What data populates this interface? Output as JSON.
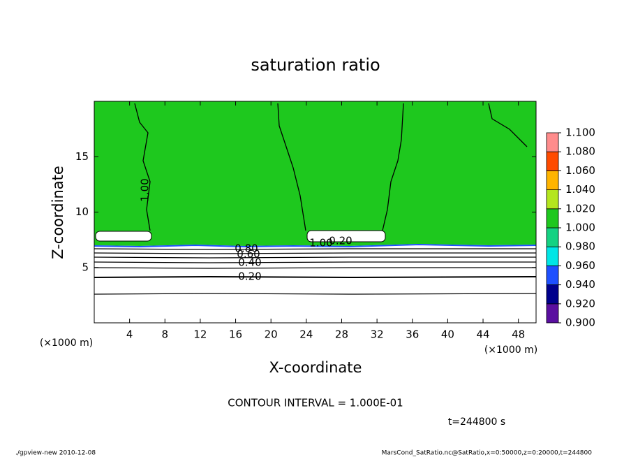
{
  "chart_data": {
    "type": "contour",
    "title": "saturation ratio",
    "x_label": "X-coordinate",
    "y_label": "Z-coordinate",
    "x_unit_labels": [
      "(×1000 m)",
      "(×1000 m)"
    ],
    "xlim": [
      0,
      50
    ],
    "xticks": [
      4,
      8,
      12,
      16,
      20,
      24,
      28,
      32,
      36,
      40,
      44,
      48
    ],
    "ylim": [
      0,
      20
    ],
    "yticks": [
      5,
      10,
      15
    ],
    "colorbar": {
      "ticks": [
        {
          "value": 0.9,
          "label": "0.900"
        },
        {
          "value": 0.92,
          "label": "0.920"
        },
        {
          "value": 0.94,
          "label": "0.940"
        },
        {
          "value": 0.96,
          "label": "0.960"
        },
        {
          "value": 0.98,
          "label": "0.980"
        },
        {
          "value": 1.0,
          "label": "1.000"
        },
        {
          "value": 1.02,
          "label": "1.020"
        },
        {
          "value": 1.04,
          "label": "1.040"
        },
        {
          "value": 1.06,
          "label": "1.060"
        },
        {
          "value": 1.08,
          "label": "1.080"
        },
        {
          "value": 1.1,
          "label": "1.100"
        }
      ],
      "colors": [
        "#5a0fa0",
        "#00008c",
        "#1e50ff",
        "#00e6e6",
        "#14d282",
        "#1ec81e",
        "#b4e61e",
        "#ffb400",
        "#ff4b00",
        "#ff8c8c"
      ]
    },
    "contour_labels": [
      "1.00",
      "0.80",
      "0.60",
      "0.40",
      "0.20",
      "1.00",
      "0.20"
    ],
    "annotations": {
      "contour_interval": "CONTOUR INTERVAL = 1.000E-01",
      "time": "t=244800 s"
    },
    "footer": {
      "left": "./gpview-new  2010-12-08",
      "right": "MarsCond_SatRatio.nc@SatRatio,x=0:50000,z=0:20000,t=244800"
    }
  }
}
